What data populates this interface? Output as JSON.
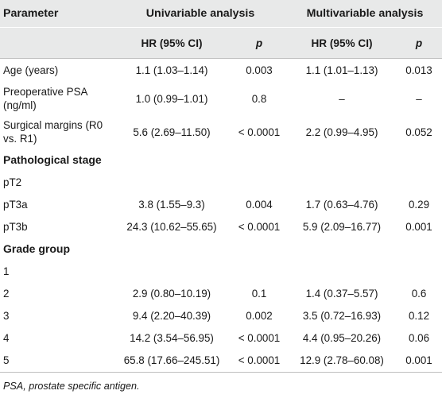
{
  "header": {
    "parameter": "Parameter",
    "univariable": "Univariable analysis",
    "multivariable": "Multivariable analysis",
    "hr_ci": "HR (95% CI)",
    "p": "p"
  },
  "rows": [
    {
      "label": "Age (years)",
      "uni_hr": "1.1 (1.03–1.14)",
      "uni_p": "0.003",
      "multi_hr": "1.1 (1.01–1.13)",
      "multi_p": "0.013"
    },
    {
      "label": "Preoperative PSA (ng/ml)",
      "uni_hr": "1.0 (0.99–1.01)",
      "uni_p": "0.8",
      "multi_hr": "–",
      "multi_p": "–"
    },
    {
      "label": "Surgical margins (R0 vs. R1)",
      "uni_hr": "5.6 (2.69–11.50)",
      "uni_p": "< 0.0001",
      "multi_hr": "2.2 (0.99–4.95)",
      "multi_p": "0.052"
    }
  ],
  "sections": [
    {
      "title": "Pathological stage",
      "rows": [
        {
          "label": "pT2",
          "uni_hr": "",
          "uni_p": "",
          "multi_hr": "",
          "multi_p": ""
        },
        {
          "label": "pT3a",
          "uni_hr": "3.8 (1.55–9.3)",
          "uni_p": "0.004",
          "multi_hr": "1.7 (0.63–4.76)",
          "multi_p": "0.29"
        },
        {
          "label": "pT3b",
          "uni_hr": "24.3 (10.62–55.65)",
          "uni_p": "< 0.0001",
          "multi_hr": "5.9 (2.09–16.77)",
          "multi_p": "0.001"
        }
      ]
    },
    {
      "title": "Grade group",
      "rows": [
        {
          "label": "1",
          "uni_hr": "",
          "uni_p": "",
          "multi_hr": "",
          "multi_p": ""
        },
        {
          "label": "2",
          "uni_hr": "2.9 (0.80–10.19)",
          "uni_p": "0.1",
          "multi_hr": "1.4 (0.37–5.57)",
          "multi_p": "0.6"
        },
        {
          "label": "3",
          "uni_hr": "9.4 (2.20–40.39)",
          "uni_p": "0.002",
          "multi_hr": "3.5 (0.72–16.93)",
          "multi_p": "0.12"
        },
        {
          "label": "4",
          "uni_hr": "14.2 (3.54–56.95)",
          "uni_p": "< 0.0001",
          "multi_hr": "4.4 (0.95–20.26)",
          "multi_p": "0.06"
        },
        {
          "label": "5",
          "uni_hr": "65.8 (17.66–245.51)",
          "uni_p": "< 0.0001",
          "multi_hr": "12.9 (2.78–60.08)",
          "multi_p": "0.001"
        }
      ]
    }
  ],
  "footnote": "PSA, prostate specific antigen."
}
